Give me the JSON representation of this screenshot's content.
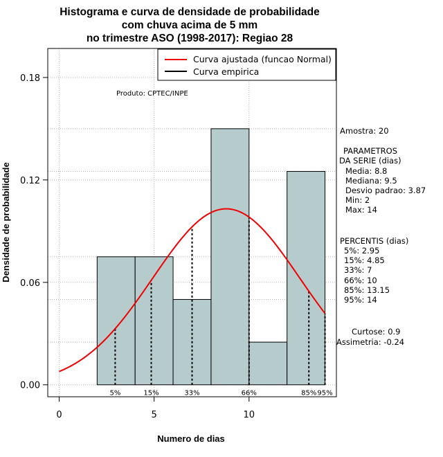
{
  "chart_data": {
    "type": "bar",
    "title_lines": [
      "Histograma e curva de densidade de probabilidade",
      "com chuva acima de 5 mm",
      "no trimestre ASO (1998-2017): Regiao 28"
    ],
    "xlabel": "Numero de dias",
    "ylabel": "Densidade de probabilidade",
    "xlim": [
      -0.6,
      14.6
    ],
    "ylim": [
      -0.007,
      0.197
    ],
    "x_ticks": [
      0,
      5,
      10
    ],
    "y_ticks": [
      0.0,
      0.06,
      0.12,
      0.18
    ],
    "y_tick_labels": [
      "0.00",
      "0.06",
      "0.12",
      "0.18"
    ],
    "bins": [
      {
        "start": 2,
        "end": 4,
        "density": 0.075
      },
      {
        "start": 4,
        "end": 6,
        "density": 0.075
      },
      {
        "start": 6,
        "end": 8,
        "density": 0.05
      },
      {
        "start": 8,
        "end": 10,
        "density": 0.15
      },
      {
        "start": 10,
        "end": 12,
        "density": 0.025
      },
      {
        "start": 12,
        "end": 14,
        "density": 0.125
      }
    ],
    "bar_color": "#b6cccc",
    "curve_color": "#ee0000",
    "normal_fit": {
      "mean": 8.8,
      "sd": 3.87
    },
    "percentile_marks": [
      {
        "label": "5%",
        "x": 2.95
      },
      {
        "label": "15%",
        "x": 4.85
      },
      {
        "label": "33%",
        "x": 7
      },
      {
        "label": "66%",
        "x": 10
      },
      {
        "label": "85%",
        "x": 13.15
      },
      {
        "label": "95%",
        "x": 14
      }
    ],
    "legend": [
      {
        "label": "Curva ajustada (funcao Normal)",
        "color": "#ee0000"
      },
      {
        "label": "Curva empirica",
        "color": "#000000"
      }
    ],
    "legend_position": "top-right",
    "grid": true
  },
  "credit": "Produto: CPTEC/INPE",
  "stats": {
    "amostra": "Amostra: 20",
    "param_title_1": "PARAMETROS",
    "param_title_2": "DA SERIE (dias)",
    "media": "Media: 8.8",
    "mediana": "Mediana: 9.5",
    "desvio": "Desvio padrao: 3.87",
    "min": "Min: 2",
    "max": "Max: 14",
    "perc_title": "PERCENTIS (dias)",
    "p5": "5%: 2.95",
    "p15": "15%: 4.85",
    "p33": "33%: 7",
    "p66": "66%: 10",
    "p85": "85%: 13.15",
    "p95": "95%: 14",
    "curtose": "Curtose: 0.9",
    "assimetria": "Assimetria: -0.24"
  }
}
